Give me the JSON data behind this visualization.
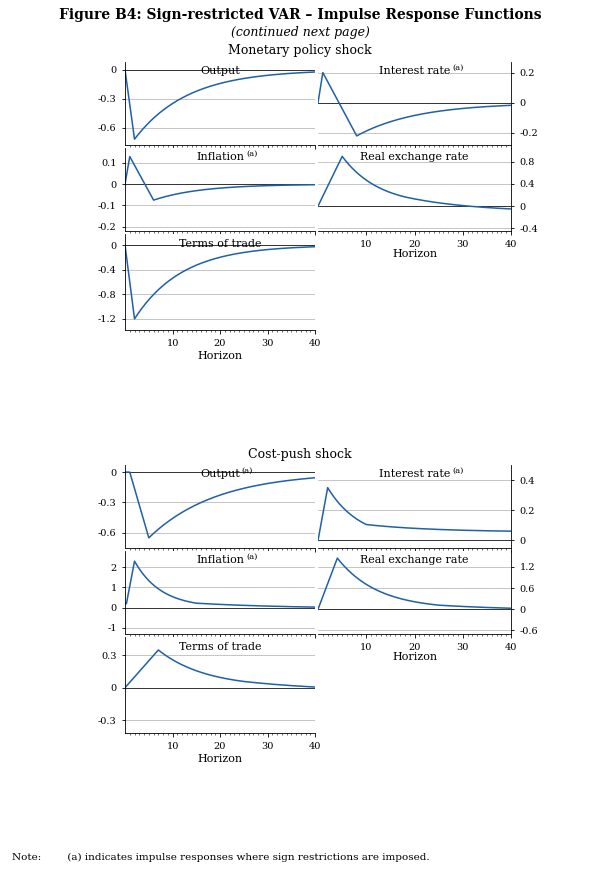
{
  "title": "Figure B4: Sign-restricted VAR – Impulse Response Functions",
  "subtitle": "(continued next page)",
  "shock1_title": "Monetary policy shock",
  "shock2_title": "Cost-push shock",
  "note": "Note:        (a) indicates impulse responses where sign restrictions are imposed.",
  "line_color": "#2060a8",
  "zero_line_color": "#333333",
  "grid_color": "#999999",
  "horizon": 40,
  "mp": {
    "output": {
      "label": "Output",
      "sup": false,
      "ylim": [
        -0.78,
        0.08
      ],
      "yticks": [
        0.0,
        -0.3,
        -0.6
      ]
    },
    "interest_rate": {
      "label": "Interest rate",
      "sup": true,
      "ylim": [
        -0.28,
        0.27
      ],
      "yticks": [
        0.2,
        0.0,
        -0.2
      ]
    },
    "inflation": {
      "label": "Inflation",
      "sup": true,
      "ylim": [
        -0.22,
        0.17
      ],
      "yticks": [
        0.1,
        0.0,
        -0.1,
        -0.2
      ]
    },
    "real_exchange": {
      "label": "Real exchange rate",
      "sup": false,
      "ylim": [
        -0.45,
        1.05
      ],
      "yticks": [
        0.8,
        0.4,
        0.0,
        -0.4
      ]
    },
    "terms_of_trade": {
      "label": "Terms of trade",
      "sup": false,
      "ylim": [
        -1.38,
        0.18
      ],
      "yticks": [
        0.0,
        -0.4,
        -0.8,
        -1.2
      ]
    }
  },
  "cp": {
    "output": {
      "label": "Output",
      "sup": true,
      "ylim": [
        -0.75,
        0.07
      ],
      "yticks": [
        0.0,
        -0.3,
        -0.6
      ]
    },
    "interest_rate": {
      "label": "Interest rate",
      "sup": true,
      "ylim": [
        -0.05,
        0.5
      ],
      "yticks": [
        0.4,
        0.2,
        0.0
      ]
    },
    "inflation": {
      "label": "Inflation",
      "sup": true,
      "ylim": [
        -1.3,
        2.8
      ],
      "yticks": [
        2.0,
        1.0,
        0.0,
        -1.0
      ]
    },
    "real_exchange": {
      "label": "Real exchange rate",
      "sup": false,
      "ylim": [
        -0.7,
        1.65
      ],
      "yticks": [
        1.2,
        0.6,
        0.0,
        -0.6
      ]
    },
    "terms_of_trade": {
      "label": "Terms of trade",
      "sup": false,
      "ylim": [
        -0.42,
        0.47
      ],
      "yticks": [
        0.3,
        0.0,
        -0.3
      ]
    }
  }
}
